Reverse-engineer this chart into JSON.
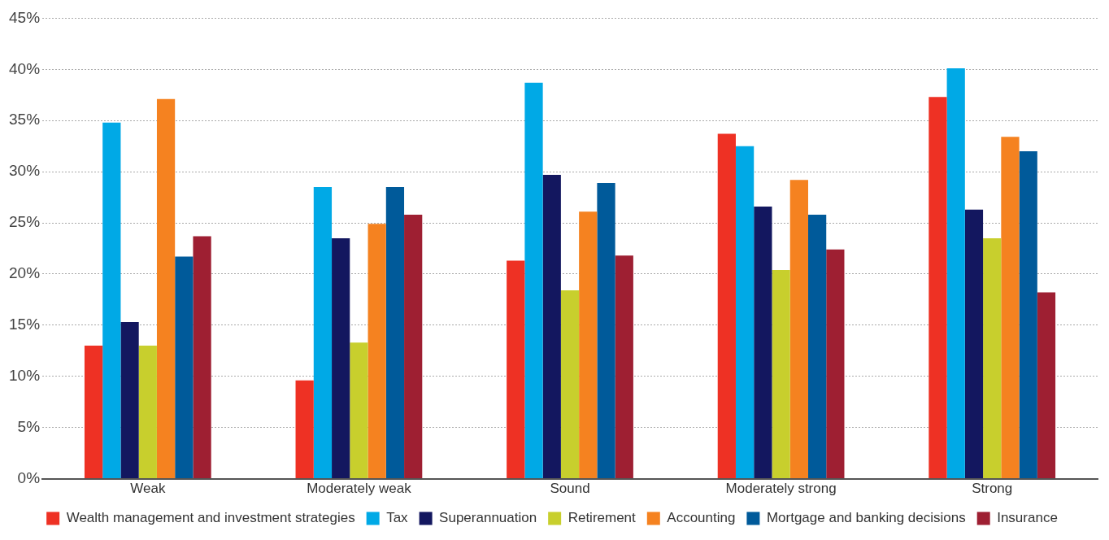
{
  "chart_data": {
    "type": "bar",
    "categories": [
      "Weak",
      "Moderately weak",
      "Sound",
      "Moderately strong",
      "Strong"
    ],
    "series": [
      {
        "name": "Wealth management and investment strategies",
        "color": "#ee3124",
        "values": [
          13.0,
          9.6,
          21.3,
          33.7,
          37.3
        ]
      },
      {
        "name": "Tax",
        "color": "#00a9e6",
        "values": [
          34.8,
          28.5,
          38.7,
          32.5,
          40.1
        ]
      },
      {
        "name": "Superannuation",
        "color": "#13175f",
        "values": [
          15.3,
          23.5,
          29.7,
          26.6,
          26.3
        ]
      },
      {
        "name": "Retirement",
        "color": "#c8cf2d",
        "values": [
          13.0,
          13.3,
          18.4,
          20.4,
          23.5
        ]
      },
      {
        "name": "Accounting",
        "color": "#f58220",
        "values": [
          37.1,
          24.9,
          26.1,
          29.2,
          33.4
        ]
      },
      {
        "name": "Mortgage and banking decisions",
        "color": "#005a9a",
        "values": [
          21.7,
          28.5,
          28.9,
          25.8,
          32.0
        ]
      },
      {
        "name": "Insurance",
        "color": "#9e1f32",
        "values": [
          23.7,
          25.8,
          21.8,
          22.4,
          18.2
        ]
      }
    ],
    "ylim": [
      0,
      45
    ],
    "yticks": [
      {
        "value": 0,
        "label": "0%"
      },
      {
        "value": 5,
        "label": "5%"
      },
      {
        "value": 10,
        "label": "10%"
      },
      {
        "value": 15,
        "label": "15%"
      },
      {
        "value": 20,
        "label": "20%"
      },
      {
        "value": 25,
        "label": "25%"
      },
      {
        "value": 30,
        "label": "30%"
      },
      {
        "value": 35,
        "label": "35%"
      },
      {
        "value": 40,
        "label": "40%"
      },
      {
        "value": 45,
        "label": "45%"
      }
    ],
    "grid": "y",
    "legend": "bottom"
  }
}
